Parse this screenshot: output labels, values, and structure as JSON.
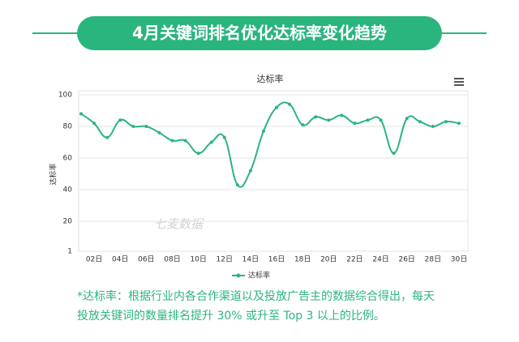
{
  "header": {
    "title": "4月关键词排名优化达标率变化趋势"
  },
  "chart_data": {
    "type": "line",
    "title": "达标率",
    "y_label": "达标率",
    "watermark": "七麦数据",
    "categories": [
      null,
      "02日",
      null,
      "04日",
      null,
      "06日",
      null,
      "08日",
      null,
      "10日",
      null,
      "12日",
      null,
      "14日",
      null,
      "16日",
      null,
      "18日",
      null,
      "20日",
      null,
      "22日",
      null,
      "24日",
      null,
      "26日",
      null,
      "28日",
      null,
      "30日"
    ],
    "series": [
      {
        "name": "达标率",
        "color": "#2bb57e",
        "values": [
          88,
          82,
          73,
          84,
          80,
          80,
          76,
          71,
          71,
          63,
          70,
          73,
          43,
          52,
          77,
          92,
          94,
          81,
          86,
          84,
          87,
          82,
          84,
          84,
          63,
          85,
          83,
          80,
          83,
          82
        ]
      }
    ],
    "ylim": [
      1,
      100
    ],
    "yticks": [
      1,
      20,
      40,
      60,
      80,
      100
    ],
    "grid": true,
    "legend": "bottom"
  },
  "footnote": [
    "*达标率：根据行业内各合作渠道以及投放广告主的数据综合得出，每天",
    "投放关键词的数量排名提升 30% 或升至 Top 3 以上的比例。"
  ]
}
